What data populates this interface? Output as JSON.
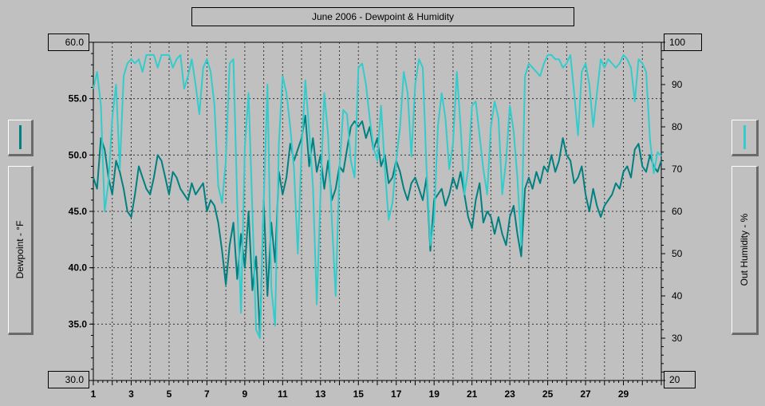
{
  "chart_data": {
    "type": "line",
    "title": "June 2006 - Dewpoint & Humidity",
    "x_ticks": [
      "1",
      "3",
      "5",
      "7",
      "9",
      "11",
      "13",
      "15",
      "17",
      "19",
      "21",
      "23",
      "25",
      "27",
      "29"
    ],
    "xlim": [
      1,
      31
    ],
    "left_axis": {
      "label": "Dewpoint - °F",
      "ylim": [
        30.0,
        60.0
      ],
      "ticks": [
        "30.0",
        "35.0",
        "40.0",
        "45.0",
        "50.0",
        "55.0",
        "60.0"
      ],
      "min_label": "30.0",
      "max_label": "60.0"
    },
    "right_axis": {
      "label": "Out Humidity - %",
      "ylim": [
        20,
        100
      ],
      "ticks": [
        "20",
        "30",
        "40",
        "50",
        "60",
        "70",
        "80",
        "90",
        "100"
      ],
      "min_label": "20",
      "max_label": "100"
    },
    "grid": true,
    "series": [
      {
        "axis": "left",
        "color": "#008080",
        "x": [
          1.0,
          1.2,
          1.4,
          1.6,
          1.8,
          2.0,
          2.2,
          2.4,
          2.6,
          2.8,
          3.0,
          3.2,
          3.4,
          3.6,
          3.8,
          4.0,
          4.2,
          4.4,
          4.6,
          4.8,
          5.0,
          5.2,
          5.4,
          5.6,
          5.8,
          6.0,
          6.2,
          6.4,
          6.6,
          6.8,
          7.0,
          7.2,
          7.4,
          7.6,
          7.8,
          8.0,
          8.2,
          8.4,
          8.6,
          8.8,
          9.0,
          9.2,
          9.4,
          9.6,
          9.8,
          10.0,
          10.2,
          10.4,
          10.6,
          10.8,
          11.0,
          11.2,
          11.4,
          11.6,
          11.8,
          12.0,
          12.2,
          12.4,
          12.6,
          12.8,
          13.0,
          13.2,
          13.4,
          13.6,
          13.8,
          14.0,
          14.2,
          14.4,
          14.6,
          14.8,
          15.0,
          15.2,
          15.4,
          15.6,
          15.8,
          16.0,
          16.2,
          16.4,
          16.6,
          16.8,
          17.0,
          17.2,
          17.4,
          17.6,
          17.8,
          18.0,
          18.2,
          18.4,
          18.6,
          18.8,
          19.0,
          19.2,
          19.4,
          19.6,
          19.8,
          20.0,
          20.2,
          20.4,
          20.6,
          20.8,
          21.0,
          21.2,
          21.4,
          21.6,
          21.8,
          22.0,
          22.2,
          22.4,
          22.6,
          22.8,
          23.0,
          23.2,
          23.4,
          23.6,
          23.8,
          24.0,
          24.2,
          24.4,
          24.6,
          24.8,
          25.0,
          25.2,
          25.4,
          25.6,
          25.8,
          26.0,
          26.2,
          26.4,
          26.6,
          26.8,
          27.0,
          27.2,
          27.4,
          27.6,
          27.8,
          28.0,
          28.2,
          28.4,
          28.6,
          28.8,
          29.0,
          29.2,
          29.4,
          29.6,
          29.8,
          30.0,
          30.2,
          30.4,
          30.6,
          30.8,
          31.0
        ],
        "values": [
          48.0,
          47.0,
          51.5,
          50.5,
          48.0,
          46.5,
          49.5,
          48.5,
          47.0,
          45.0,
          44.5,
          46.5,
          49.0,
          48.0,
          47.0,
          46.5,
          48.0,
          50.0,
          49.5,
          48.0,
          46.5,
          48.5,
          48.0,
          47.0,
          46.5,
          46.0,
          47.5,
          46.5,
          47.0,
          47.5,
          45.0,
          46.0,
          45.5,
          44.0,
          41.5,
          38.5,
          42.0,
          44.0,
          39.0,
          43.0,
          40.0,
          45.0,
          38.0,
          41.0,
          34.0,
          46.0,
          37.5,
          44.0,
          40.5,
          48.5,
          46.5,
          48.0,
          51.0,
          49.5,
          50.5,
          51.5,
          53.5,
          49.0,
          51.5,
          48.5,
          50.0,
          47.0,
          49.5,
          46.0,
          47.0,
          49.0,
          48.5,
          50.5,
          52.5,
          53.0,
          52.5,
          53.0,
          51.5,
          52.5,
          50.5,
          51.5,
          49.0,
          50.0,
          47.5,
          48.0,
          49.5,
          48.5,
          47.0,
          46.0,
          47.5,
          48.0,
          47.0,
          46.0,
          48.0,
          41.5,
          46.0,
          46.5,
          47.0,
          45.5,
          46.5,
          48.0,
          47.0,
          48.5,
          46.5,
          44.5,
          43.5,
          46.0,
          47.5,
          44.0,
          45.0,
          44.5,
          43.0,
          44.5,
          43.0,
          42.0,
          44.5,
          45.5,
          43.0,
          41.0,
          47.0,
          48.0,
          47.0,
          48.5,
          47.5,
          49.0,
          48.5,
          50.0,
          48.5,
          49.5,
          51.5,
          50.0,
          49.5,
          47.5,
          48.0,
          49.0,
          46.5,
          45.0,
          47.0,
          45.5,
          44.5,
          45.5,
          46.0,
          46.5,
          47.5,
          47.0,
          48.5,
          49.0,
          48.0,
          50.5,
          51.0,
          49.0,
          48.5,
          50.0,
          49.0,
          48.5,
          49.5
        ]
      },
      {
        "axis": "right",
        "color": "#33cccc",
        "x": [
          1.0,
          1.2,
          1.4,
          1.6,
          1.8,
          2.0,
          2.2,
          2.4,
          2.6,
          2.8,
          3.0,
          3.2,
          3.4,
          3.6,
          3.8,
          4.0,
          4.2,
          4.4,
          4.6,
          4.8,
          5.0,
          5.2,
          5.4,
          5.6,
          5.8,
          6.0,
          6.2,
          6.4,
          6.6,
          6.8,
          7.0,
          7.2,
          7.4,
          7.6,
          7.8,
          8.0,
          8.2,
          8.4,
          8.6,
          8.8,
          9.0,
          9.2,
          9.4,
          9.6,
          9.8,
          10.0,
          10.2,
          10.4,
          10.6,
          10.8,
          11.0,
          11.2,
          11.4,
          11.6,
          11.8,
          12.0,
          12.2,
          12.4,
          12.6,
          12.8,
          13.0,
          13.2,
          13.4,
          13.6,
          13.8,
          14.0,
          14.2,
          14.4,
          14.6,
          14.8,
          15.0,
          15.2,
          15.4,
          15.6,
          15.8,
          16.0,
          16.2,
          16.4,
          16.6,
          16.8,
          17.0,
          17.2,
          17.4,
          17.6,
          17.8,
          18.0,
          18.2,
          18.4,
          18.6,
          18.8,
          19.0,
          19.2,
          19.4,
          19.6,
          19.8,
          20.0,
          20.2,
          20.4,
          20.6,
          20.8,
          21.0,
          21.2,
          21.4,
          21.6,
          21.8,
          22.0,
          22.2,
          22.4,
          22.6,
          22.8,
          23.0,
          23.2,
          23.4,
          23.6,
          23.8,
          24.0,
          24.2,
          24.4,
          24.6,
          24.8,
          25.0,
          25.2,
          25.4,
          25.6,
          25.8,
          26.0,
          26.2,
          26.4,
          26.6,
          26.8,
          27.0,
          27.2,
          27.4,
          27.6,
          27.8,
          28.0,
          28.2,
          28.4,
          28.6,
          28.8,
          29.0,
          29.2,
          29.4,
          29.6,
          29.8,
          30.0,
          30.2,
          30.4,
          30.6,
          30.8,
          31.0
        ],
        "values": [
          89,
          93,
          85,
          60,
          67,
          82,
          90,
          70,
          92,
          95,
          96,
          95,
          96,
          93,
          97,
          97,
          97,
          94,
          97,
          97,
          97,
          94,
          96,
          97,
          89,
          92,
          96,
          90,
          83,
          94,
          96,
          93,
          85,
          66,
          62,
          72,
          95,
          96,
          62,
          36,
          75,
          88,
          60,
          32,
          30,
          62,
          90,
          42,
          33,
          76,
          92,
          88,
          80,
          70,
          50,
          75,
          91,
          79,
          66,
          38,
          64,
          88,
          78,
          58,
          40,
          70,
          84,
          83,
          72,
          68,
          94,
          95,
          90,
          82,
          75,
          72,
          85,
          70,
          58,
          62,
          72,
          80,
          93,
          88,
          73,
          90,
          96,
          94,
          70,
          52,
          58,
          80,
          88,
          82,
          70,
          76,
          93,
          80,
          64,
          70,
          85,
          86,
          78,
          70,
          64,
          80,
          86,
          82,
          64,
          72,
          85,
          79,
          68,
          52,
          92,
          95,
          94,
          93,
          92,
          95,
          97,
          97,
          96,
          96,
          94,
          95,
          97,
          88,
          78,
          93,
          95,
          90,
          80,
          88,
          96,
          94,
          96,
          95,
          94,
          95,
          97,
          96,
          94,
          86,
          96,
          95,
          93,
          77,
          69,
          74,
          73
        ]
      }
    ]
  }
}
